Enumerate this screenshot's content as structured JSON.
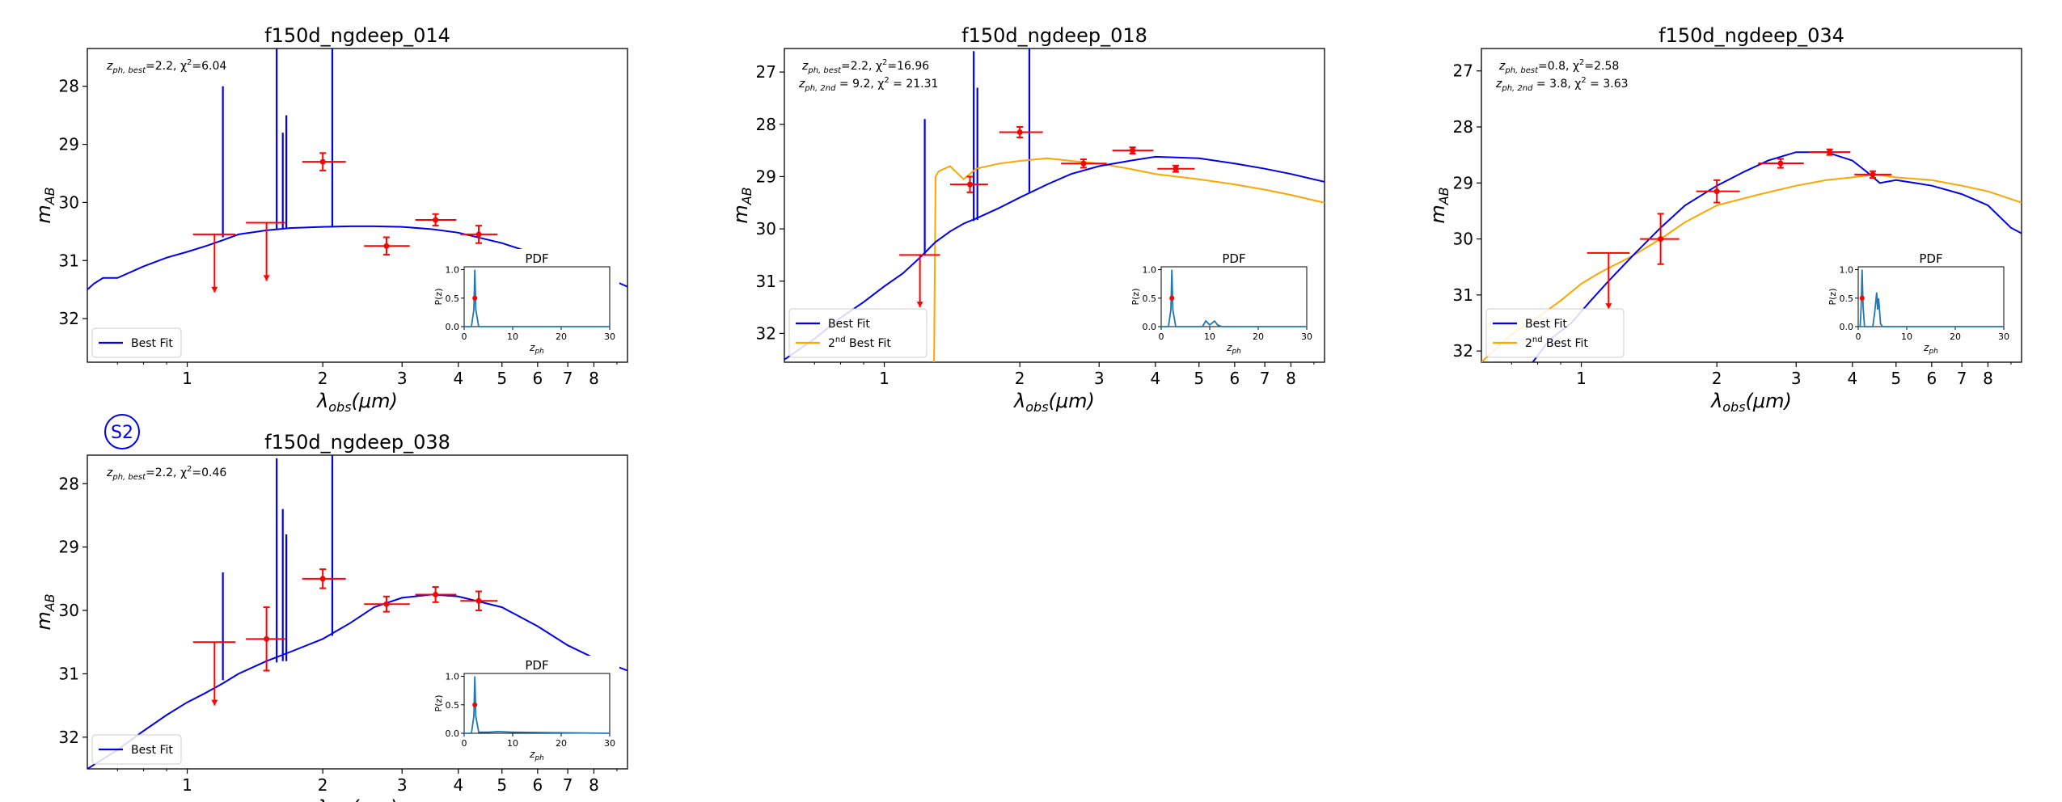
{
  "figure": {
    "stamp": "S2",
    "pdf_title": "PDF",
    "pdf_ylabel": "P(z)",
    "pdf_xlabel_main": "z",
    "pdf_xlabel_sub": "ph",
    "xlabel_main": "λ",
    "xlabel_sub": "obs",
    "xlabel_unit": "(μm)",
    "ylabel_main": "m",
    "ylabel_sub": "AB",
    "colors": {
      "best": "#0000ee",
      "second": "#ffa500",
      "phot": "#ff0000",
      "pdf": "#1f77b4"
    }
  },
  "chart_data": [
    {
      "type": "line",
      "title": "f150d_ngdeep_014",
      "annotation": [
        {
          "pre": "z",
          "sub": "ph, best",
          "post": "=2.2, χ",
          "sup": "2",
          "tail": "=6.04"
        }
      ],
      "legend": [
        {
          "name": "Best Fit",
          "role": "best"
        }
      ],
      "legend_position": "lower-left",
      "x_scale": "log",
      "xlim": [
        0.6,
        9.5
      ],
      "ylim": [
        32.75,
        27.35
      ],
      "xticks": [
        1,
        2,
        3,
        4,
        5,
        6,
        7,
        8
      ],
      "yticks": [
        28,
        29,
        30,
        31,
        32
      ],
      "series": [
        {
          "name": "Best Fit",
          "role": "best",
          "x": [
            0.6,
            0.62,
            0.65,
            0.7,
            0.8,
            0.9,
            1.0,
            1.1,
            1.2,
            1.3,
            1.5,
            1.7,
            2.0,
            2.3,
            2.6,
            3.0,
            3.5,
            4.0,
            5.0,
            6.0,
            7.0,
            8.0,
            9.5
          ],
          "y": [
            31.5,
            31.4,
            31.3,
            31.3,
            31.1,
            30.95,
            30.85,
            30.75,
            30.65,
            30.55,
            30.48,
            30.44,
            30.42,
            30.41,
            30.41,
            30.42,
            30.46,
            30.52,
            30.7,
            30.9,
            31.05,
            31.2,
            31.45
          ]
        }
      ],
      "emission_lines": [
        {
          "x": 1.2,
          "top": 28.0,
          "base": 30.6
        },
        {
          "x": 1.58,
          "top": 27.35,
          "base": 30.46
        },
        {
          "x": 1.63,
          "top": 28.8,
          "base": 30.45
        },
        {
          "x": 1.66,
          "top": 28.5,
          "base": 30.45
        },
        {
          "x": 2.1,
          "top": 27.35,
          "base": 30.42
        }
      ],
      "photometry": [
        {
          "x": 1.15,
          "xerr": [
            0.12,
            0.13
          ],
          "y": 30.55,
          "yerr": [
            0,
            0
          ],
          "upper_limit": true,
          "arrow_to": 31.55
        },
        {
          "x": 1.5,
          "xerr": [
            0.15,
            0.15
          ],
          "y": 30.35,
          "yerr": [
            0,
            0
          ],
          "upper_limit": true,
          "arrow_to": 31.35
        },
        {
          "x": 2.0,
          "xerr": [
            0.2,
            0.25
          ],
          "y": 29.3,
          "yerr": [
            0.15,
            0.15
          ],
          "upper_limit": false
        },
        {
          "x": 2.77,
          "xerr": [
            0.3,
            0.35
          ],
          "y": 30.75,
          "yerr": [
            0.15,
            0.15
          ],
          "upper_limit": false
        },
        {
          "x": 3.56,
          "xerr": [
            0.35,
            0.4
          ],
          "y": 30.3,
          "yerr": [
            0.1,
            0.1
          ],
          "upper_limit": false
        },
        {
          "x": 4.44,
          "xerr": [
            0.4,
            0.45
          ],
          "y": 30.55,
          "yerr": [
            0.15,
            0.15
          ],
          "upper_limit": false
        }
      ],
      "pdf": {
        "xlim": [
          0,
          30
        ],
        "ylim": [
          0,
          1.05
        ],
        "xticks": [
          0,
          10,
          20,
          30
        ],
        "yticks": [
          0.0,
          0.5,
          1.0
        ],
        "x": [
          0,
          1.5,
          2.0,
          2.2,
          2.4,
          3.0,
          4.0,
          30
        ],
        "y": [
          0,
          0,
          0.3,
          1.0,
          0.3,
          0,
          0,
          0
        ],
        "best_z": 2.2,
        "best_p": 0.5
      }
    },
    {
      "type": "line",
      "title": "f150d_ngdeep_018",
      "annotation": [
        {
          "pre": "z",
          "sub": "ph, best",
          "post": "=2.2, χ",
          "sup": "2",
          "tail": "=16.96"
        },
        {
          "pre": "z",
          "sub": "ph, 2nd",
          "post": " = 9.2, χ",
          "sup": "2",
          "tail": " = 21.31"
        }
      ],
      "legend": [
        {
          "name": "Best Fit",
          "role": "best"
        },
        {
          "name": "2",
          "sup": "nd",
          "after": " Best Fit",
          "role": "second"
        }
      ],
      "legend_position": "lower-left",
      "x_scale": "log",
      "xlim": [
        0.6,
        9.5
      ],
      "ylim": [
        32.55,
        26.55
      ],
      "xticks": [
        1,
        2,
        3,
        4,
        5,
        6,
        7,
        8
      ],
      "yticks": [
        27,
        28,
        29,
        30,
        31,
        32
      ],
      "series": [
        {
          "name": "Best Fit",
          "role": "best",
          "x": [
            0.6,
            0.7,
            0.8,
            0.9,
            1.0,
            1.1,
            1.2,
            1.3,
            1.4,
            1.5,
            1.6,
            1.8,
            2.0,
            2.3,
            2.6,
            3.0,
            3.5,
            4.0,
            5.0,
            6.0,
            7.0,
            8.0,
            9.5
          ],
          "y": [
            32.5,
            32.1,
            31.7,
            31.4,
            31.1,
            30.85,
            30.55,
            30.25,
            30.05,
            29.9,
            29.8,
            29.6,
            29.4,
            29.15,
            28.95,
            28.8,
            28.7,
            28.62,
            28.65,
            28.75,
            28.85,
            28.95,
            29.1
          ]
        },
        {
          "name": "2nd Best Fit",
          "role": "second",
          "x": [
            1.29,
            1.3,
            1.32,
            1.4,
            1.5,
            1.6,
            1.8,
            2.0,
            2.3,
            2.6,
            3.0,
            3.5,
            4.0,
            5.0,
            6.0,
            7.0,
            8.0,
            9.5
          ],
          "y": [
            32.55,
            29.0,
            28.9,
            28.8,
            29.05,
            28.85,
            28.75,
            28.7,
            28.65,
            28.7,
            28.75,
            28.85,
            28.95,
            29.05,
            29.15,
            29.25,
            29.35,
            29.5
          ]
        }
      ],
      "emission_lines": [
        {
          "x": 1.23,
          "top": 27.9,
          "base": 30.5
        },
        {
          "x": 1.58,
          "top": 26.6,
          "base": 29.85
        },
        {
          "x": 1.61,
          "top": 27.3,
          "base": 29.83
        },
        {
          "x": 2.1,
          "top": 26.55,
          "base": 29.3
        }
      ],
      "photometry": [
        {
          "x": 1.2,
          "xerr": [
            0.12,
            0.13
          ],
          "y": 30.5,
          "yerr": [
            0,
            0
          ],
          "upper_limit": true,
          "arrow_to": 31.5
        },
        {
          "x": 1.55,
          "xerr": [
            0.15,
            0.15
          ],
          "y": 29.15,
          "yerr": [
            0.15,
            0.15
          ],
          "upper_limit": false
        },
        {
          "x": 2.0,
          "xerr": [
            0.2,
            0.25
          ],
          "y": 28.15,
          "yerr": [
            0.1,
            0.1
          ],
          "upper_limit": false
        },
        {
          "x": 2.77,
          "xerr": [
            0.3,
            0.35
          ],
          "y": 28.75,
          "yerr": [
            0.08,
            0.08
          ],
          "upper_limit": false
        },
        {
          "x": 3.56,
          "xerr": [
            0.35,
            0.4
          ],
          "y": 28.5,
          "yerr": [
            0.06,
            0.06
          ],
          "upper_limit": false
        },
        {
          "x": 4.44,
          "xerr": [
            0.4,
            0.45
          ],
          "y": 28.85,
          "yerr": [
            0.06,
            0.06
          ],
          "upper_limit": false
        }
      ],
      "pdf": {
        "xlim": [
          0,
          30
        ],
        "ylim": [
          0,
          1.05
        ],
        "xticks": [
          0,
          10,
          20,
          30
        ],
        "yticks": [
          0.0,
          0.5,
          1.0
        ],
        "x": [
          0,
          1.5,
          2.0,
          2.2,
          2.4,
          3.0,
          8.5,
          9.2,
          10.0,
          11.0,
          11.6,
          12.5,
          30
        ],
        "y": [
          0,
          0,
          0.3,
          1.0,
          0.3,
          0,
          0,
          0.1,
          0.03,
          0.1,
          0.03,
          0,
          0
        ],
        "best_z": 2.2,
        "best_p": 0.5
      }
    },
    {
      "type": "line",
      "title": "f150d_ngdeep_034",
      "annotation": [
        {
          "pre": "z",
          "sub": "ph, best",
          "post": "=0.8, χ",
          "sup": "2",
          "tail": "=2.58"
        },
        {
          "pre": "z",
          "sub": "ph, 2nd",
          "post": " = 3.8, χ",
          "sup": "2",
          "tail": " = 3.63"
        }
      ],
      "legend": [
        {
          "name": "Best Fit",
          "role": "best"
        },
        {
          "name": "2",
          "sup": "nd",
          "after": " Best Fit",
          "role": "second"
        }
      ],
      "legend_position": "lower-left",
      "x_scale": "log",
      "xlim": [
        0.6,
        9.5
      ],
      "ylim": [
        32.2,
        26.6
      ],
      "xticks": [
        1,
        2,
        3,
        4,
        5,
        6,
        7,
        8
      ],
      "yticks": [
        27,
        28,
        29,
        30,
        31,
        32
      ],
      "series": [
        {
          "name": "Best Fit",
          "role": "best",
          "x": [
            0.78,
            0.85,
            0.95,
            1.05,
            1.15,
            1.3,
            1.5,
            1.7,
            2.0,
            2.3,
            2.6,
            3.0,
            3.5,
            4.0,
            4.3,
            4.6,
            5.0,
            5.5,
            6.0,
            7.0,
            8.0,
            9.0,
            9.5
          ],
          "y": [
            32.2,
            31.8,
            31.5,
            31.1,
            30.75,
            30.3,
            29.8,
            29.4,
            29.05,
            28.8,
            28.6,
            28.45,
            28.45,
            28.6,
            28.8,
            29.0,
            28.95,
            29.0,
            29.05,
            29.2,
            29.4,
            29.8,
            29.9
          ]
        },
        {
          "name": "2nd Best Fit",
          "role": "second",
          "x": [
            0.6,
            0.7,
            0.8,
            0.9,
            1.0,
            1.1,
            1.3,
            1.5,
            1.7,
            2.0,
            2.5,
            3.0,
            3.5,
            4.0,
            4.5,
            5.0,
            6.0,
            7.0,
            8.0,
            9.5
          ],
          "y": [
            32.2,
            31.7,
            31.4,
            31.1,
            30.8,
            30.6,
            30.3,
            30.0,
            29.7,
            29.4,
            29.2,
            29.05,
            28.95,
            28.9,
            28.85,
            28.9,
            28.95,
            29.05,
            29.15,
            29.35
          ]
        }
      ],
      "emission_lines": [],
      "photometry": [
        {
          "x": 1.15,
          "xerr": [
            0.12,
            0.13
          ],
          "y": 30.25,
          "yerr": [
            0,
            0
          ],
          "upper_limit": true,
          "arrow_to": 31.25
        },
        {
          "x": 1.5,
          "xerr": [
            0.15,
            0.15
          ],
          "y": 30.0,
          "yerr": [
            0.45,
            0.45
          ],
          "upper_limit": false
        },
        {
          "x": 2.0,
          "xerr": [
            0.2,
            0.25
          ],
          "y": 29.15,
          "yerr": [
            0.2,
            0.2
          ],
          "upper_limit": false
        },
        {
          "x": 2.77,
          "xerr": [
            0.3,
            0.35
          ],
          "y": 28.65,
          "yerr": [
            0.08,
            0.08
          ],
          "upper_limit": false
        },
        {
          "x": 3.56,
          "xerr": [
            0.35,
            0.4
          ],
          "y": 28.45,
          "yerr": [
            0.05,
            0.05
          ],
          "upper_limit": false
        },
        {
          "x": 4.44,
          "xerr": [
            0.4,
            0.45
          ],
          "y": 28.85,
          "yerr": [
            0.06,
            0.06
          ],
          "upper_limit": false
        }
      ],
      "pdf": {
        "xlim": [
          0,
          30
        ],
        "ylim": [
          0,
          1.05
        ],
        "xticks": [
          0,
          10,
          20,
          30
        ],
        "yticks": [
          0.0,
          0.5,
          1.0
        ],
        "x": [
          0,
          0.4,
          0.6,
          0.8,
          1.0,
          1.3,
          3.0,
          3.4,
          3.8,
          4.0,
          4.2,
          4.6,
          5.0,
          30
        ],
        "y": [
          0,
          0,
          0.35,
          1.0,
          0.35,
          0,
          0,
          0.25,
          0.6,
          0.3,
          0.5,
          0.05,
          0,
          0
        ],
        "best_z": 0.8,
        "best_p": 0.5
      }
    },
    {
      "type": "line",
      "title": "f150d_ngdeep_038",
      "annotation": [
        {
          "pre": "z",
          "sub": "ph, best",
          "post": "=2.2, χ",
          "sup": "2",
          "tail": "=0.46"
        }
      ],
      "legend": [
        {
          "name": "Best Fit",
          "role": "best"
        }
      ],
      "legend_position": "lower-left",
      "x_scale": "log",
      "xlim": [
        0.6,
        9.5
      ],
      "ylim": [
        32.5,
        27.55
      ],
      "xticks": [
        1,
        2,
        3,
        4,
        5,
        6,
        7,
        8
      ],
      "yticks": [
        28,
        29,
        30,
        31,
        32
      ],
      "series": [
        {
          "name": "Best Fit",
          "role": "best",
          "x": [
            0.6,
            0.7,
            0.8,
            0.9,
            1.0,
            1.1,
            1.2,
            1.3,
            1.5,
            1.7,
            2.0,
            2.3,
            2.6,
            3.0,
            3.5,
            4.0,
            5.0,
            6.0,
            7.0,
            8.0,
            9.5
          ],
          "y": [
            32.5,
            32.2,
            31.9,
            31.65,
            31.45,
            31.3,
            31.15,
            31.0,
            30.8,
            30.65,
            30.45,
            30.2,
            29.95,
            29.8,
            29.75,
            29.78,
            29.95,
            30.25,
            30.55,
            30.75,
            30.95
          ]
        }
      ],
      "emission_lines": [
        {
          "x": 1.2,
          "top": 29.4,
          "base": 31.1
        },
        {
          "x": 1.58,
          "top": 27.6,
          "base": 30.82
        },
        {
          "x": 1.63,
          "top": 28.4,
          "base": 30.8
        },
        {
          "x": 1.66,
          "top": 28.8,
          "base": 30.8
        },
        {
          "x": 2.1,
          "top": 27.55,
          "base": 30.4
        }
      ],
      "photometry": [
        {
          "x": 1.15,
          "xerr": [
            0.12,
            0.13
          ],
          "y": 30.5,
          "yerr": [
            0,
            0
          ],
          "upper_limit": true,
          "arrow_to": 31.5
        },
        {
          "x": 1.5,
          "xerr": [
            0.15,
            0.15
          ],
          "y": 30.45,
          "yerr": [
            0.5,
            0.5
          ],
          "upper_limit": false
        },
        {
          "x": 2.0,
          "xerr": [
            0.2,
            0.25
          ],
          "y": 29.5,
          "yerr": [
            0.15,
            0.15
          ],
          "upper_limit": false
        },
        {
          "x": 2.77,
          "xerr": [
            0.3,
            0.35
          ],
          "y": 29.9,
          "yerr": [
            0.12,
            0.12
          ],
          "upper_limit": false
        },
        {
          "x": 3.56,
          "xerr": [
            0.35,
            0.4
          ],
          "y": 29.75,
          "yerr": [
            0.12,
            0.12
          ],
          "upper_limit": false
        },
        {
          "x": 4.44,
          "xerr": [
            0.4,
            0.45
          ],
          "y": 29.85,
          "yerr": [
            0.15,
            0.15
          ],
          "upper_limit": false
        }
      ],
      "pdf": {
        "xlim": [
          0,
          30
        ],
        "ylim": [
          0,
          1.05
        ],
        "xticks": [
          0,
          10,
          20,
          30
        ],
        "yticks": [
          0.0,
          0.5,
          1.0
        ],
        "x": [
          0,
          1.5,
          2.0,
          2.2,
          2.4,
          3.0,
          5,
          7,
          10,
          30
        ],
        "y": [
          0,
          0,
          0.3,
          1.0,
          0.3,
          0.02,
          0.02,
          0.03,
          0.02,
          0
        ],
        "best_z": 2.2,
        "best_p": 0.5
      }
    }
  ]
}
